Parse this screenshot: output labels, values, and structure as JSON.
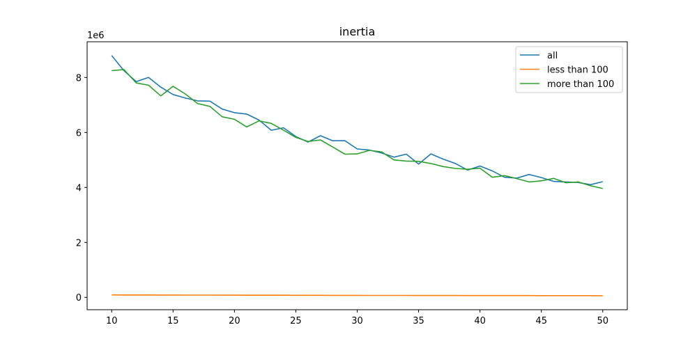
{
  "chart_data": {
    "type": "line",
    "title": "inertia",
    "xlabel": "",
    "ylabel": "",
    "y_offset_text": "1e6",
    "xlim": [
      8,
      52
    ],
    "ylim": [
      -0.45,
      9.3
    ],
    "y_scale_factor": 1000000,
    "xticks": [
      10,
      15,
      20,
      25,
      30,
      35,
      40,
      45,
      50
    ],
    "yticks": [
      0,
      2,
      4,
      6,
      8
    ],
    "grid": false,
    "legend_position": "top-right",
    "x": [
      10,
      11,
      12,
      13,
      14,
      15,
      16,
      17,
      18,
      19,
      20,
      21,
      22,
      23,
      24,
      25,
      26,
      27,
      28,
      29,
      30,
      31,
      32,
      33,
      34,
      35,
      36,
      37,
      38,
      39,
      40,
      41,
      42,
      43,
      44,
      45,
      46,
      47,
      48,
      49,
      50
    ],
    "series": [
      {
        "name": "all",
        "color": "#1f77b4",
        "values": [
          8.8,
          8.25,
          7.85,
          8.0,
          7.65,
          7.38,
          7.25,
          7.15,
          7.14,
          6.85,
          6.72,
          6.67,
          6.45,
          6.08,
          6.17,
          5.85,
          5.65,
          5.88,
          5.7,
          5.7,
          5.4,
          5.36,
          5.25,
          5.1,
          5.21,
          4.85,
          5.22,
          5.03,
          4.87,
          4.63,
          4.78,
          4.6,
          4.37,
          4.34,
          4.47,
          4.36,
          4.22,
          4.2,
          4.18,
          4.1,
          4.21
        ]
      },
      {
        "name": "less than 100",
        "color": "#ff7f0e",
        "values": [
          0.09,
          0.088,
          0.087,
          0.086,
          0.085,
          0.084,
          0.083,
          0.082,
          0.081,
          0.08,
          0.079,
          0.078,
          0.077,
          0.076,
          0.076,
          0.075,
          0.074,
          0.073,
          0.072,
          0.071,
          0.071,
          0.07,
          0.069,
          0.069,
          0.068,
          0.067,
          0.067,
          0.066,
          0.066,
          0.065,
          0.065,
          0.064,
          0.064,
          0.063,
          0.063,
          0.062,
          0.062,
          0.062,
          0.061,
          0.061,
          0.06
        ]
      },
      {
        "name": "more than 100",
        "color": "#2ca02c",
        "values": [
          8.25,
          8.29,
          7.8,
          7.72,
          7.33,
          7.68,
          7.4,
          7.05,
          6.95,
          6.57,
          6.48,
          6.2,
          6.42,
          6.33,
          6.08,
          5.82,
          5.67,
          5.73,
          5.47,
          5.21,
          5.22,
          5.35,
          5.29,
          5.0,
          4.96,
          4.95,
          4.87,
          4.76,
          4.69,
          4.66,
          4.7,
          4.37,
          4.43,
          4.32,
          4.2,
          4.24,
          4.33,
          4.17,
          4.2,
          4.06,
          3.96
        ]
      }
    ]
  }
}
